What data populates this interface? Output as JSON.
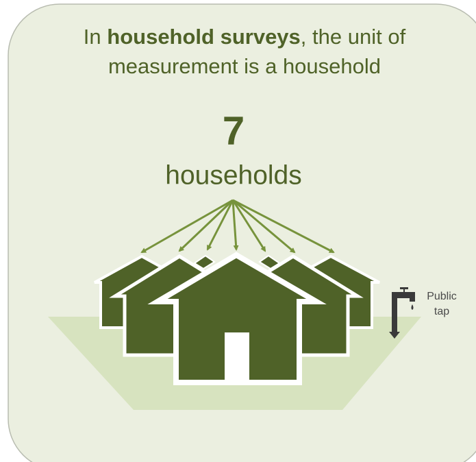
{
  "title": {
    "prefix": "In ",
    "bold": "household surveys",
    "suffix": ", the unit of",
    "line2": "measurement is a household"
  },
  "count": "7",
  "unit": "households",
  "tap_label": [
    "Public",
    "tap"
  ]
}
